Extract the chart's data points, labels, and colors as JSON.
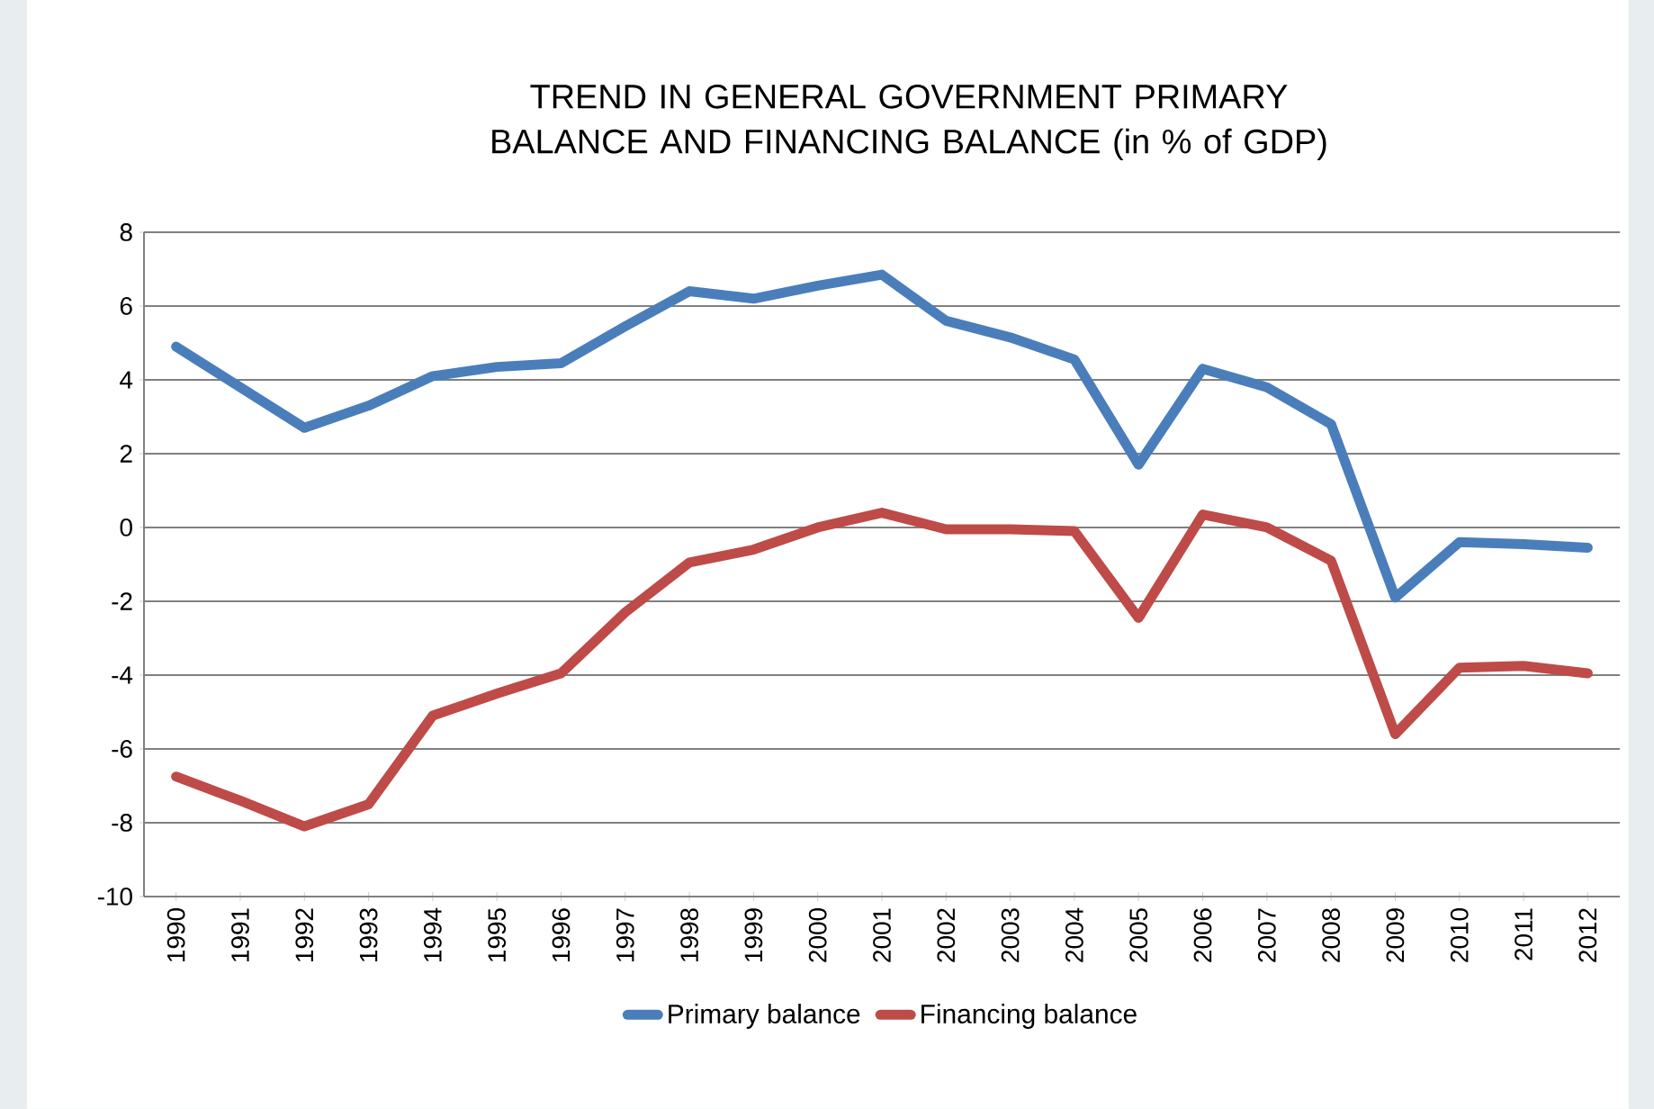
{
  "chart_data": {
    "type": "line",
    "title": "TREND IN GENERAL GOVERNMENT PRIMARY BALANCE AND FINANCING BALANCE (in % of GDP)",
    "categories": [
      "1990",
      "1991",
      "1992",
      "1993",
      "1994",
      "1995",
      "1996",
      "1997",
      "1998",
      "1999",
      "2000",
      "2001",
      "2002",
      "2003",
      "2004",
      "2005",
      "2006",
      "2007",
      "2008",
      "2009",
      "2010",
      "2011",
      "2012"
    ],
    "series": [
      {
        "name": "Primary balance",
        "color": "#4a7ebb",
        "values": [
          4.9,
          3.8,
          2.7,
          3.3,
          4.1,
          4.35,
          4.45,
          5.45,
          6.4,
          6.2,
          6.55,
          6.85,
          5.6,
          5.15,
          4.55,
          1.7,
          4.3,
          3.8,
          2.8,
          -1.9,
          -0.4,
          -0.45,
          -0.55
        ]
      },
      {
        "name": "Financing balance",
        "color": "#be4b48",
        "values": [
          -6.75,
          -7.4,
          -8.1,
          -7.5,
          -5.1,
          -4.5,
          -3.95,
          -2.3,
          -0.95,
          -0.6,
          0.0,
          0.4,
          -0.05,
          -0.05,
          -0.1,
          -2.45,
          0.35,
          0.0,
          -0.9,
          -5.6,
          -3.8,
          -3.75,
          -3.95
        ]
      }
    ],
    "ylim": [
      -10,
      8
    ],
    "yticks": [
      -10,
      -8,
      -6,
      -4,
      -2,
      0,
      2,
      4,
      6,
      8
    ],
    "grid": "y",
    "legend": "bottom",
    "marker": "none",
    "line_style": "solid"
  }
}
